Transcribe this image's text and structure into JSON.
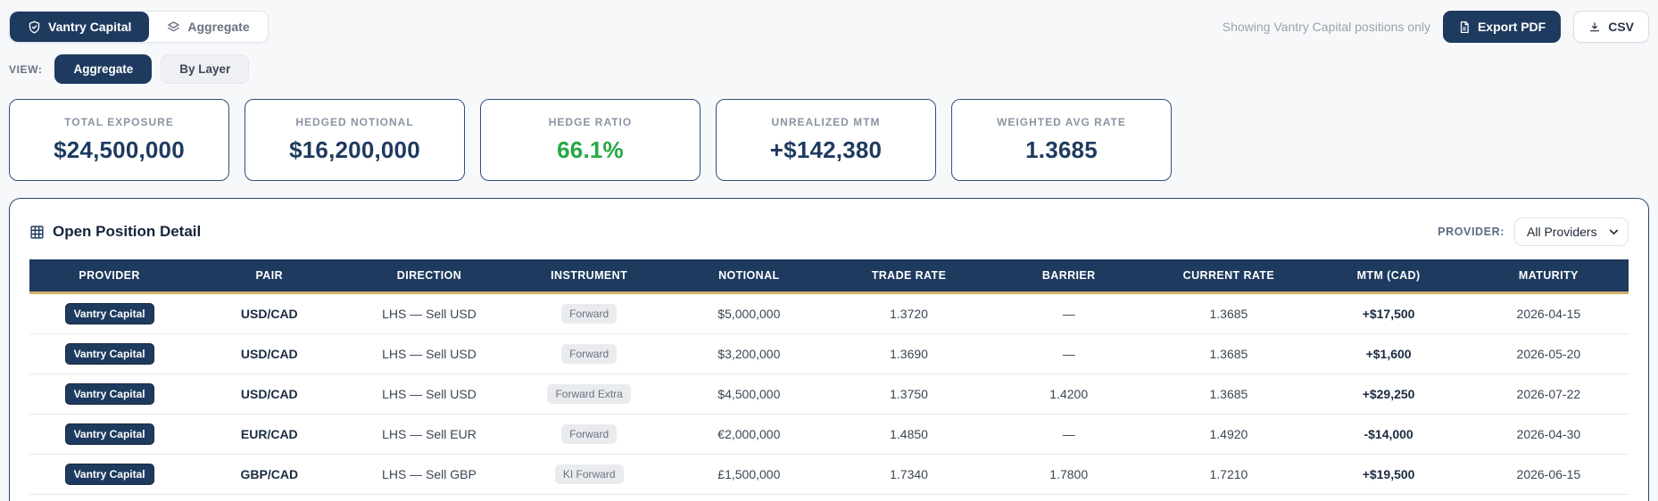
{
  "colors": {
    "navy": "#1e3a5f",
    "gold": "#d4b06a",
    "green": "#27a844",
    "page_background": "#f7f8fa"
  },
  "header": {
    "entity_toggle": [
      {
        "label": "Vantry Capital",
        "icon": "shield-icon",
        "active": true
      },
      {
        "label": "Aggregate",
        "icon": "layers-icon",
        "active": false
      }
    ],
    "status_text": "Showing Vantry Capital positions only",
    "export_pdf_label": "Export PDF",
    "csv_label": "CSV"
  },
  "view_toggle": {
    "label": "VIEW:",
    "options": [
      {
        "label": "Aggregate",
        "active": true
      },
      {
        "label": "By Layer",
        "active": false
      }
    ]
  },
  "kpi_cards": [
    {
      "label": "TOTAL EXPOSURE",
      "value": "$24,500,000",
      "color": "#1e3a5f"
    },
    {
      "label": "HEDGED NOTIONAL",
      "value": "$16,200,000",
      "color": "#1e3a5f"
    },
    {
      "label": "HEDGE RATIO",
      "value": "66.1%",
      "color": "#27a844"
    },
    {
      "label": "UNREALIZED MTM",
      "value": "+$142,380",
      "color": "#1e3a5f"
    },
    {
      "label": "WEIGHTED AVG RATE",
      "value": "1.3685",
      "color": "#1e3a5f"
    }
  ],
  "positions_panel": {
    "title": "Open Position Detail",
    "provider_filter_label": "PROVIDER:",
    "provider_filter_value": "All Providers",
    "columns": [
      "PROVIDER",
      "PAIR",
      "DIRECTION",
      "INSTRUMENT",
      "NOTIONAL",
      "TRADE RATE",
      "BARRIER",
      "CURRENT RATE",
      "MTM (CAD)",
      "MATURITY"
    ],
    "rows": [
      {
        "provider": "Vantry Capital",
        "pair": "USD/CAD",
        "direction": "LHS — Sell USD",
        "instrument": "Forward",
        "notional": "$5,000,000",
        "trade_rate": "1.3720",
        "barrier": "—",
        "current_rate": "1.3685",
        "mtm": "+$17,500",
        "maturity": "2026-04-15"
      },
      {
        "provider": "Vantry Capital",
        "pair": "USD/CAD",
        "direction": "LHS — Sell USD",
        "instrument": "Forward",
        "notional": "$3,200,000",
        "trade_rate": "1.3690",
        "barrier": "—",
        "current_rate": "1.3685",
        "mtm": "+$1,600",
        "maturity": "2026-05-20"
      },
      {
        "provider": "Vantry Capital",
        "pair": "USD/CAD",
        "direction": "LHS — Sell USD",
        "instrument": "Forward Extra",
        "notional": "$4,500,000",
        "trade_rate": "1.3750",
        "barrier": "1.4200",
        "current_rate": "1.3685",
        "mtm": "+$29,250",
        "maturity": "2026-07-22"
      },
      {
        "provider": "Vantry Capital",
        "pair": "EUR/CAD",
        "direction": "LHS — Sell EUR",
        "instrument": "Forward",
        "notional": "€2,000,000",
        "trade_rate": "1.4850",
        "barrier": "—",
        "current_rate": "1.4920",
        "mtm": "-$14,000",
        "maturity": "2026-04-30"
      },
      {
        "provider": "Vantry Capital",
        "pair": "GBP/CAD",
        "direction": "LHS — Sell GBP",
        "instrument": "KI Forward",
        "notional": "£1,500,000",
        "trade_rate": "1.7340",
        "barrier": "1.7800",
        "current_rate": "1.7210",
        "mtm": "+$19,500",
        "maturity": "2026-06-15"
      }
    ]
  }
}
